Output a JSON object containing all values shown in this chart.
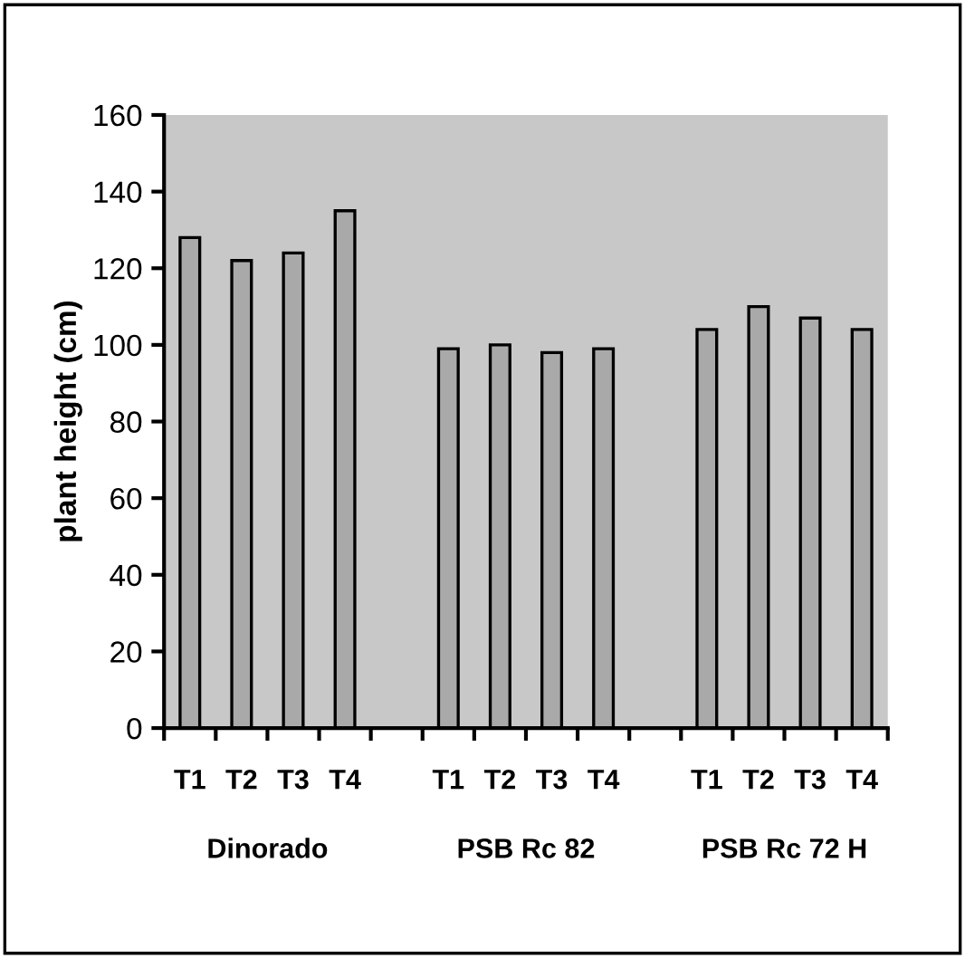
{
  "chart_data": {
    "type": "bar",
    "ylabel": "plant height (cm)",
    "categories": [
      "T1",
      "T2",
      "T3",
      "T4",
      null,
      "T1",
      "T2",
      "T3",
      "T4",
      null,
      "T1",
      "T2",
      "T3",
      "T4"
    ],
    "values": [
      128,
      122,
      124,
      135,
      null,
      99,
      100,
      98,
      99,
      null,
      104,
      110,
      107,
      104
    ],
    "color": "#a9a9a9",
    "ylim": [
      0,
      160
    ],
    "yticks": [
      0,
      20,
      40,
      60,
      80,
      100,
      120,
      140,
      160
    ],
    "grid": false,
    "annotations": [
      "Dinorado",
      "PSB Rc 82",
      "PSB Rc 72 H"
    ]
  }
}
